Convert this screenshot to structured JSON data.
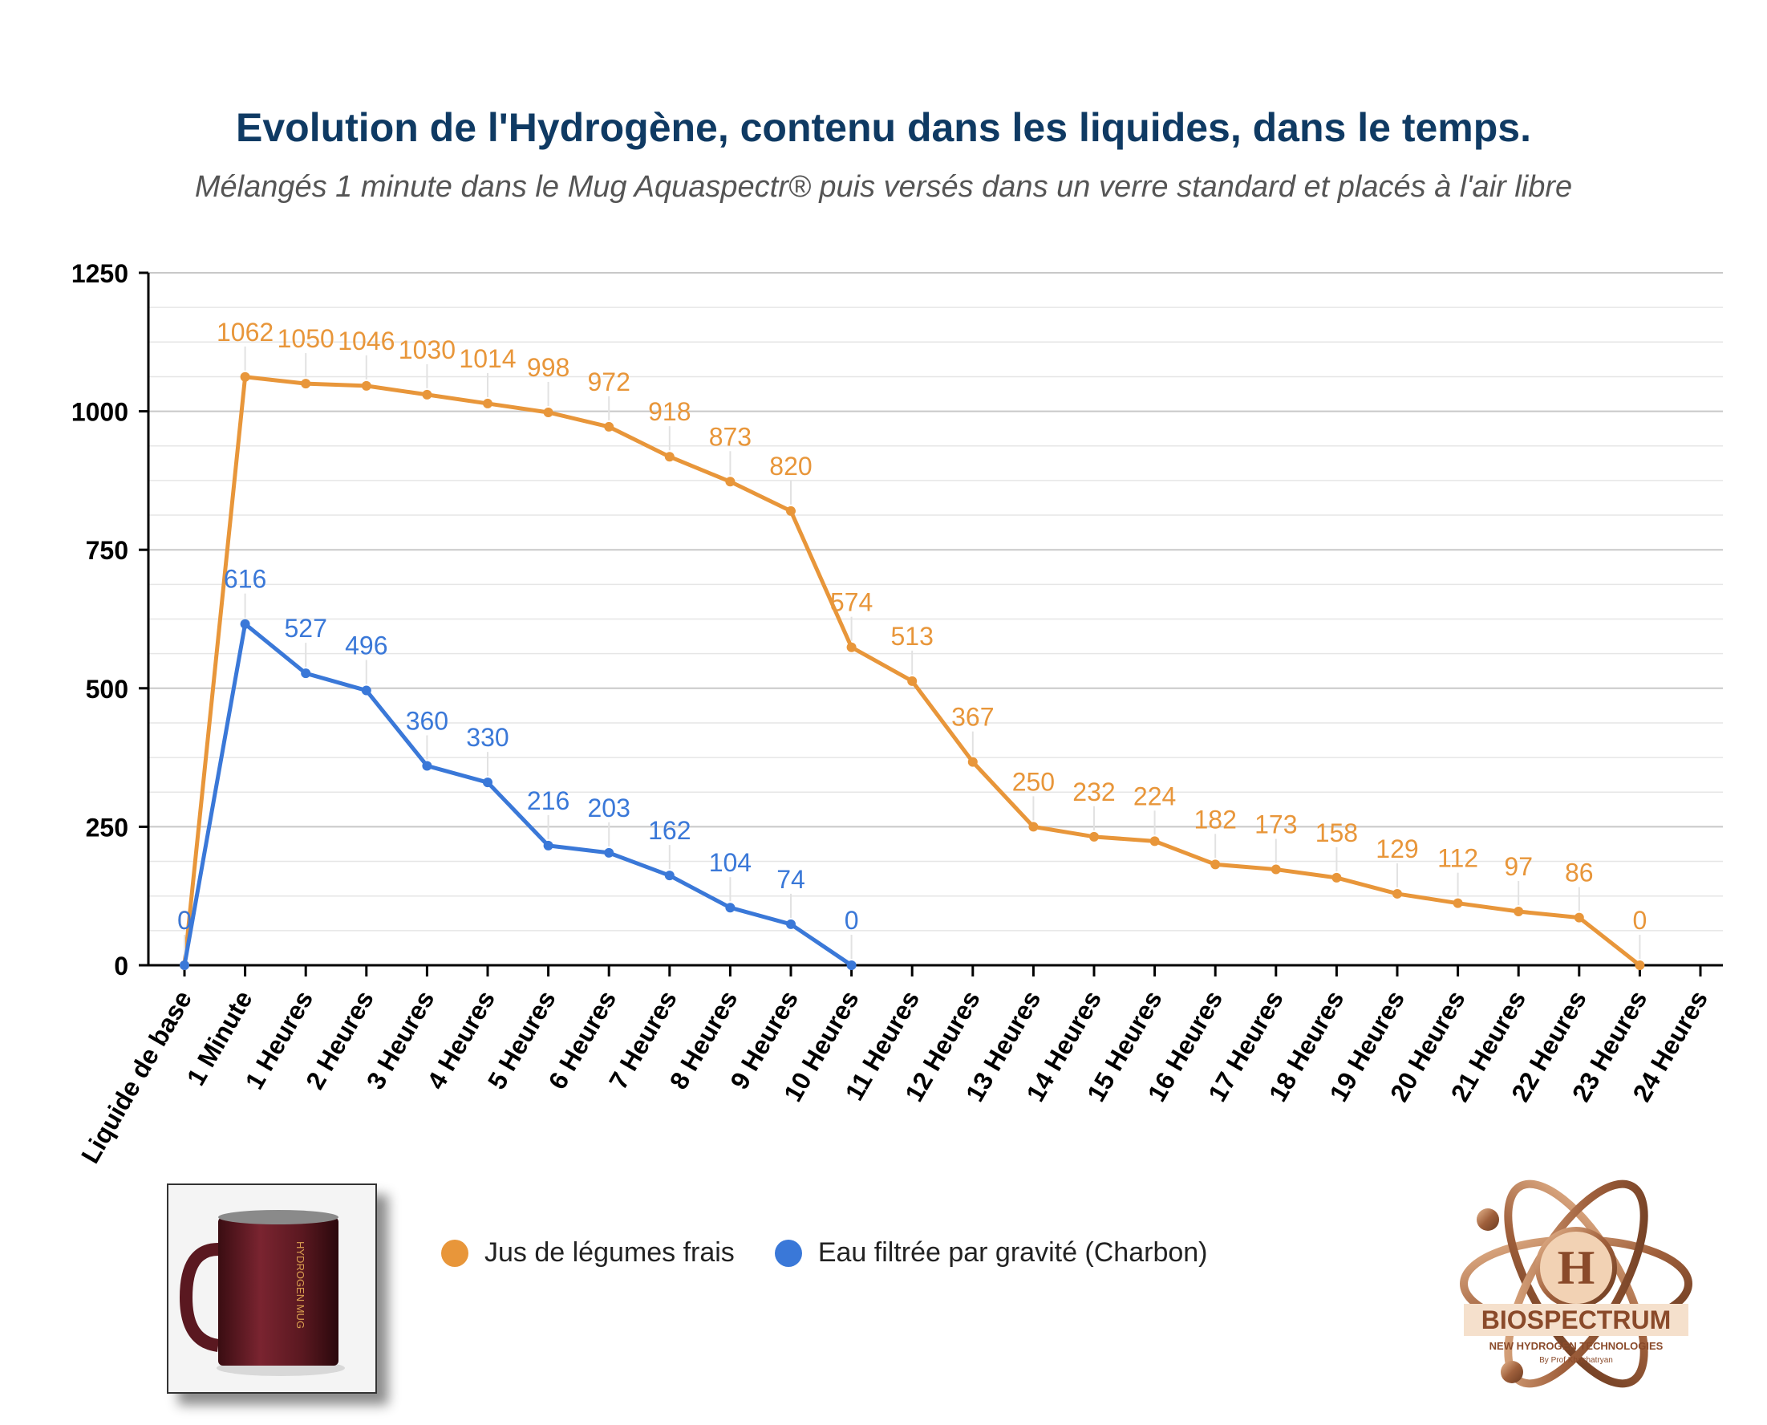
{
  "chart_data": {
    "type": "line",
    "title": "Evolution de l'Hydrogène, contenu dans les liquides, dans le temps.",
    "subtitle": "Mélangés 1 minute dans le Mug Aquaspectr® puis versés dans un verre standard et placés à l'air libre",
    "categories": [
      "Liquide de base",
      "1 Minute",
      "1 Heures",
      "2 Heures",
      "3 Heures",
      "4 Heures",
      "5 Heures",
      "6 Heures",
      "7 Heures",
      "8 Heures",
      "9 Heures",
      "10 Heures",
      "11 Heures",
      "12 Heures",
      "13 Heures",
      "14 Heures",
      "15 Heures",
      "16 Heures",
      "17 Heures",
      "18 Heures",
      "19 Heures",
      "20 Heures",
      "21 Heures",
      "22 Heures",
      "23 Heures",
      "24 Heures"
    ],
    "ylim": [
      0,
      1250
    ],
    "yticks": [
      0,
      250,
      500,
      750,
      1000,
      1250
    ],
    "grid": true,
    "legend_position": "bottom",
    "series": [
      {
        "name": "Jus de légumes frais",
        "color": "#e8963a",
        "values": [
          0,
          1062,
          1050,
          1046,
          1030,
          1014,
          998,
          972,
          918,
          873,
          820,
          574,
          513,
          367,
          250,
          232,
          224,
          182,
          173,
          158,
          129,
          112,
          97,
          86,
          0,
          null
        ]
      },
      {
        "name": "Eau filtrée par gravité (Charbon)",
        "color": "#3a78d8",
        "values": [
          0,
          616,
          527,
          496,
          360,
          330,
          216,
          203,
          162,
          104,
          74,
          0,
          null,
          null,
          null,
          null,
          null,
          null,
          null,
          null,
          null,
          null,
          null,
          null,
          null,
          null
        ]
      }
    ]
  },
  "mug": {
    "label": "HYDROGEN MUG"
  },
  "logo": {
    "name": "BIOSPECTRUM",
    "letter": "H",
    "tagline": "NEW HYDROGEN TECHNOLOGIES",
    "byline": "By Prof Khachatryan"
  }
}
